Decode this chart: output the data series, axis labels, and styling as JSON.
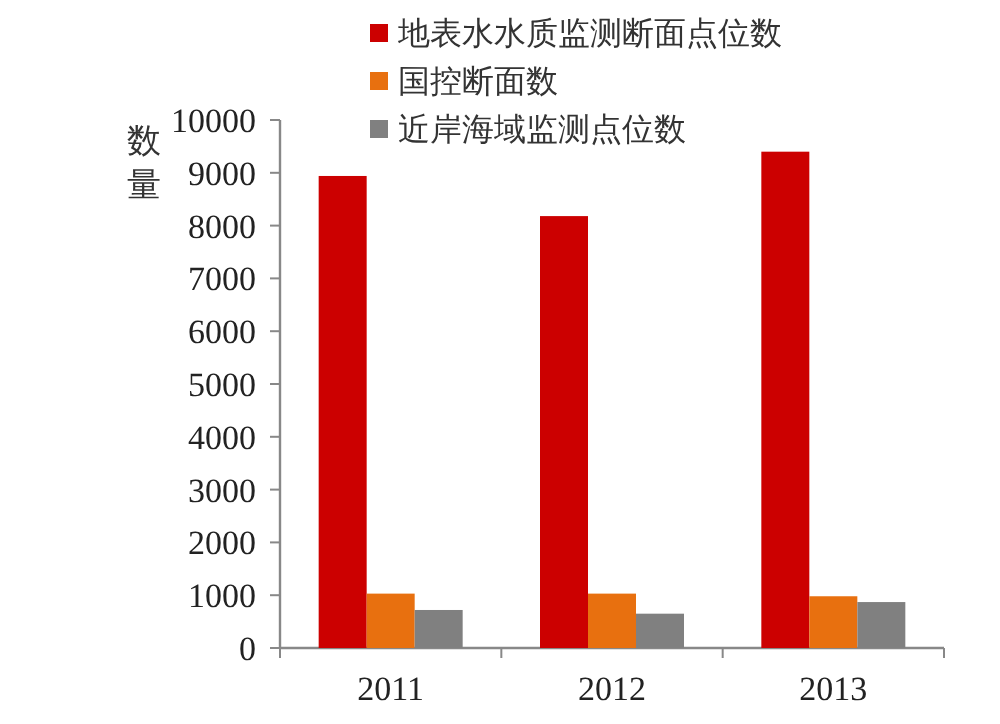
{
  "chart_data": {
    "type": "bar",
    "ylabel": "数量",
    "categories": [
      "2011",
      "2012",
      "2013"
    ],
    "series": [
      {
        "name": "地表水水质监测断面点位数",
        "color": "#cc0000",
        "values": [
          8940,
          8180,
          9400
        ]
      },
      {
        "name": "国控断面数",
        "color": "#e8700f",
        "values": [
          1030,
          1030,
          980
        ]
      },
      {
        "name": "近岸海域监测点位数",
        "color": "#808080",
        "values": [
          720,
          650,
          870
        ]
      }
    ],
    "ylim": [
      0,
      10000
    ],
    "yticks": [
      0,
      1000,
      2000,
      3000,
      4000,
      5000,
      6000,
      7000,
      8000,
      9000,
      10000
    ],
    "grid": false,
    "legend": "top"
  }
}
